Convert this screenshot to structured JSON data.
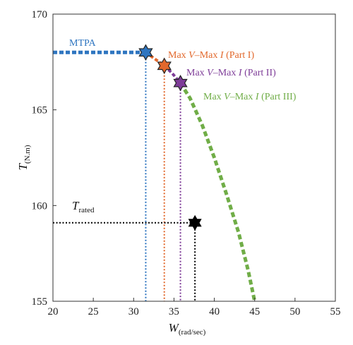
{
  "chart_data": {
    "type": "line",
    "xlabel": "W",
    "xlabel_sub": "(rad/sec)",
    "ylabel": "T",
    "ylabel_sub": "(N.m)",
    "xlim": [
      20,
      55
    ],
    "ylim": [
      155,
      170
    ],
    "xticks": [
      "20",
      "25",
      "30",
      "35",
      "40",
      "45",
      "50",
      "55"
    ],
    "yticks": [
      "155",
      "160",
      "165",
      "170"
    ],
    "grid": false,
    "colors": {
      "mtpa": "#2E75C0",
      "part1": "#E2682C",
      "part2": "#7E3C98",
      "part3": "#70AD47",
      "rated": "#000000"
    },
    "series": [
      {
        "name": "MTPA",
        "color_key": "mtpa",
        "x": [
          20,
          31.5
        ],
        "y": [
          168,
          168
        ]
      },
      {
        "name": "Max V–Max I (Part I)",
        "name_parts": [
          "Max ",
          "V",
          "–Max ",
          "I",
          " (Part I)"
        ],
        "color_key": "part1",
        "x": [
          31.5,
          32.5,
          33.8
        ],
        "y": [
          168,
          167.7,
          167.3
        ]
      },
      {
        "name": "Max V–Max I (Part II)",
        "name_parts": [
          "Max ",
          "V",
          "–Max ",
          "I",
          " (Part II)"
        ],
        "color_key": "part2",
        "x": [
          33.8,
          34.8,
          35.8
        ],
        "y": [
          167.3,
          166.9,
          166.4
        ]
      },
      {
        "name": "Max V–Max I (Part III)",
        "name_parts": [
          "Max ",
          "V",
          "–Max ",
          "I",
          " (Part III)"
        ],
        "color_key": "part3",
        "x": [
          35.8,
          37,
          38.5,
          40,
          41.5,
          43,
          44.2,
          45
        ],
        "y": [
          166.4,
          165.6,
          164.2,
          162.5,
          160.6,
          158.6,
          156.6,
          155
        ]
      }
    ],
    "transition_points": [
      {
        "x": 31.5,
        "y": 168,
        "color_key": "mtpa"
      },
      {
        "x": 33.8,
        "y": 167.3,
        "color_key": "part1"
      },
      {
        "x": 35.8,
        "y": 166.4,
        "color_key": "part2"
      }
    ],
    "rated_point": {
      "label": "T",
      "label_sub": "rated",
      "x": 37.6,
      "y": 159.1
    }
  }
}
